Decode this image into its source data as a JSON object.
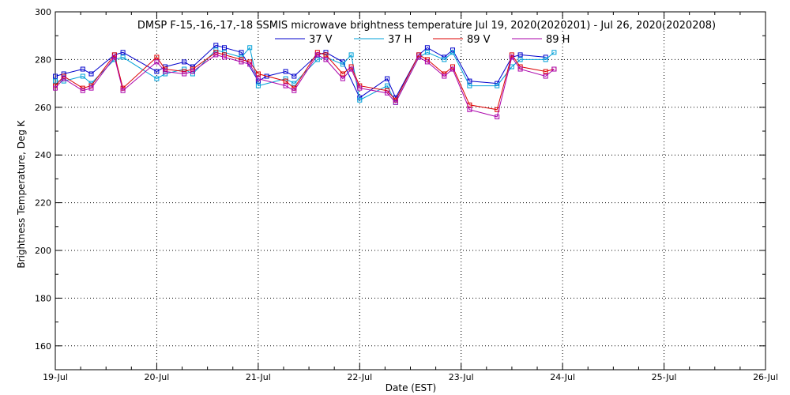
{
  "chart_data": {
    "type": "line",
    "title": "DMSP F-15,-16,-17,-18 SSMIS microwave brightness temperature Jul 19, 2020(2020201) - Jul 26, 2020(2020208)",
    "xlabel": "Date (EST)",
    "ylabel": "Brightness Temperature, Deg K",
    "x_ticks": [
      "19-Jul",
      "20-Jul",
      "21-Jul",
      "22-Jul",
      "23-Jul",
      "24-Jul",
      "25-Jul",
      "26-Jul"
    ],
    "xlim": [
      "2020-07-19",
      "2020-07-26"
    ],
    "ylim": [
      150,
      300
    ],
    "y_ticks": [
      160,
      180,
      200,
      220,
      240,
      260,
      280,
      300
    ],
    "grid": true,
    "legend_position": "top",
    "series": [
      {
        "name": "37 V",
        "color": "#0000cc",
        "x": [
          "2020-07-19 00:00",
          "2020-07-19 02:00",
          "2020-07-19 06:30",
          "2020-07-19 08:30",
          "2020-07-19 14:00",
          "2020-07-19 16:00",
          "2020-07-20 00:00",
          "2020-07-20 02:00",
          "2020-07-20 06:30",
          "2020-07-20 08:30",
          "2020-07-20 14:00",
          "2020-07-20 16:00",
          "2020-07-20 20:00",
          "2020-07-21 00:00",
          "2020-07-21 02:00",
          "2020-07-21 06:30",
          "2020-07-21 08:30",
          "2020-07-21 14:00",
          "2020-07-21 16:00",
          "2020-07-21 20:00",
          "2020-07-22 00:00",
          "2020-07-22 06:30",
          "2020-07-22 08:30",
          "2020-07-22 14:00",
          "2020-07-22 16:00",
          "2020-07-22 20:00",
          "2020-07-22 22:00",
          "2020-07-23 02:00",
          "2020-07-23 08:30",
          "2020-07-23 12:00",
          "2020-07-23 14:00",
          "2020-07-23 20:00"
        ],
        "y": [
          273,
          274,
          276,
          274,
          282,
          283,
          275,
          277,
          279,
          277,
          286,
          285,
          283,
          271,
          273,
          275,
          273,
          282,
          283,
          279,
          264,
          272,
          264,
          282,
          285,
          281,
          284,
          271,
          270,
          281,
          282,
          281
        ]
      },
      {
        "name": "37 H",
        "color": "#00a0d8",
        "x": [
          "2020-07-19 00:00",
          "2020-07-19 02:00",
          "2020-07-19 06:30",
          "2020-07-19 08:30",
          "2020-07-19 14:00",
          "2020-07-19 16:00",
          "2020-07-20 00:00",
          "2020-07-20 02:00",
          "2020-07-20 06:30",
          "2020-07-20 08:30",
          "2020-07-20 14:00",
          "2020-07-20 16:00",
          "2020-07-20 20:00",
          "2020-07-20 22:00",
          "2020-07-21 00:00",
          "2020-07-21 06:30",
          "2020-07-21 08:30",
          "2020-07-21 14:00",
          "2020-07-21 16:00",
          "2020-07-21 20:00",
          "2020-07-21 22:00",
          "2020-07-22 00:00",
          "2020-07-22 06:30",
          "2020-07-22 08:30",
          "2020-07-22 14:00",
          "2020-07-22 16:00",
          "2020-07-22 20:00",
          "2020-07-22 22:00",
          "2020-07-23 02:00",
          "2020-07-23 08:30",
          "2020-07-23 12:00",
          "2020-07-23 14:00",
          "2020-07-23 20:00",
          "2020-07-23 22:00"
        ],
        "y": [
          271,
          271,
          273,
          270,
          280,
          281,
          272,
          274,
          276,
          274,
          284,
          283,
          281,
          285,
          269,
          272,
          270,
          280,
          281,
          278,
          282,
          263,
          269,
          262,
          281,
          283,
          280,
          283,
          269,
          269,
          277,
          280,
          280,
          283
        ]
      },
      {
        "name": "89 V",
        "color": "#dd0000",
        "x": [
          "2020-07-19 00:00",
          "2020-07-19 02:00",
          "2020-07-19 06:30",
          "2020-07-19 08:30",
          "2020-07-19 14:00",
          "2020-07-19 16:00",
          "2020-07-20 00:00",
          "2020-07-20 02:00",
          "2020-07-20 06:30",
          "2020-07-20 08:30",
          "2020-07-20 14:00",
          "2020-07-20 16:00",
          "2020-07-20 20:00",
          "2020-07-20 22:00",
          "2020-07-21 00:00",
          "2020-07-21 06:30",
          "2020-07-21 08:30",
          "2020-07-21 14:00",
          "2020-07-21 16:00",
          "2020-07-21 20:00",
          "2020-07-21 22:00",
          "2020-07-22 00:00",
          "2020-07-22 06:30",
          "2020-07-22 08:30",
          "2020-07-22 14:00",
          "2020-07-22 16:00",
          "2020-07-22 20:00",
          "2020-07-22 22:00",
          "2020-07-23 02:00",
          "2020-07-23 08:30",
          "2020-07-23 12:00",
          "2020-07-23 14:00",
          "2020-07-23 20:00",
          "2020-07-23 22:00"
        ],
        "y": [
          269,
          273,
          268,
          269,
          282,
          268,
          281,
          276,
          275,
          276,
          283,
          282,
          280,
          279,
          274,
          271,
          268,
          283,
          282,
          274,
          277,
          269,
          267,
          263,
          282,
          280,
          274,
          277,
          261,
          259,
          282,
          277,
          275,
          276
        ]
      },
      {
        "name": "89 H",
        "color": "#aa00aa",
        "x": [
          "2020-07-19 00:00",
          "2020-07-19 02:00",
          "2020-07-19 06:30",
          "2020-07-19 08:30",
          "2020-07-19 14:00",
          "2020-07-19 16:00",
          "2020-07-20 00:00",
          "2020-07-20 02:00",
          "2020-07-20 06:30",
          "2020-07-20 08:30",
          "2020-07-20 14:00",
          "2020-07-20 16:00",
          "2020-07-20 20:00",
          "2020-07-20 22:00",
          "2020-07-21 00:00",
          "2020-07-21 06:30",
          "2020-07-21 08:30",
          "2020-07-21 14:00",
          "2020-07-21 16:00",
          "2020-07-21 20:00",
          "2020-07-21 22:00",
          "2020-07-22 00:00",
          "2020-07-22 06:30",
          "2020-07-22 08:30",
          "2020-07-22 14:00",
          "2020-07-22 16:00",
          "2020-07-22 20:00",
          "2020-07-22 22:00",
          "2020-07-23 02:00",
          "2020-07-23 08:30",
          "2020-07-23 12:00",
          "2020-07-23 14:00",
          "2020-07-23 20:00",
          "2020-07-23 22:00"
        ],
        "y": [
          268,
          272,
          267,
          268,
          281,
          267,
          279,
          275,
          274,
          275,
          282,
          281,
          279,
          278,
          272,
          269,
          267,
          282,
          280,
          272,
          276,
          268,
          266,
          262,
          281,
          279,
          273,
          276,
          259,
          256,
          281,
          276,
          273,
          276
        ]
      }
    ]
  }
}
